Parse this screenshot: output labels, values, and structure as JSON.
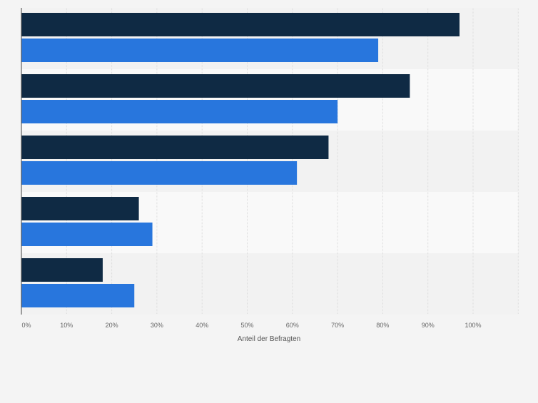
{
  "chart_data": {
    "type": "bar",
    "orientation": "horizontal",
    "title": "",
    "xlabel": "Anteil der Befragten",
    "ylabel": "",
    "xlim": [
      0,
      110
    ],
    "x_ticks": [
      0,
      10,
      20,
      30,
      40,
      50,
      60,
      70,
      80,
      90,
      100
    ],
    "x_tick_labels": [
      "0%",
      "10%",
      "20%",
      "30%",
      "40%",
      "50%",
      "60%",
      "70%",
      "80%",
      "90%",
      "100%"
    ],
    "categories": [
      "",
      "",
      "",
      "",
      ""
    ],
    "grid": true,
    "legend": "none",
    "series": [
      {
        "values": [
          97,
          86,
          68,
          26,
          18
        ],
        "color": "#0f2a44"
      },
      {
        "values": [
          79,
          70,
          61,
          29,
          25
        ],
        "color": "#2876dd"
      }
    ]
  }
}
